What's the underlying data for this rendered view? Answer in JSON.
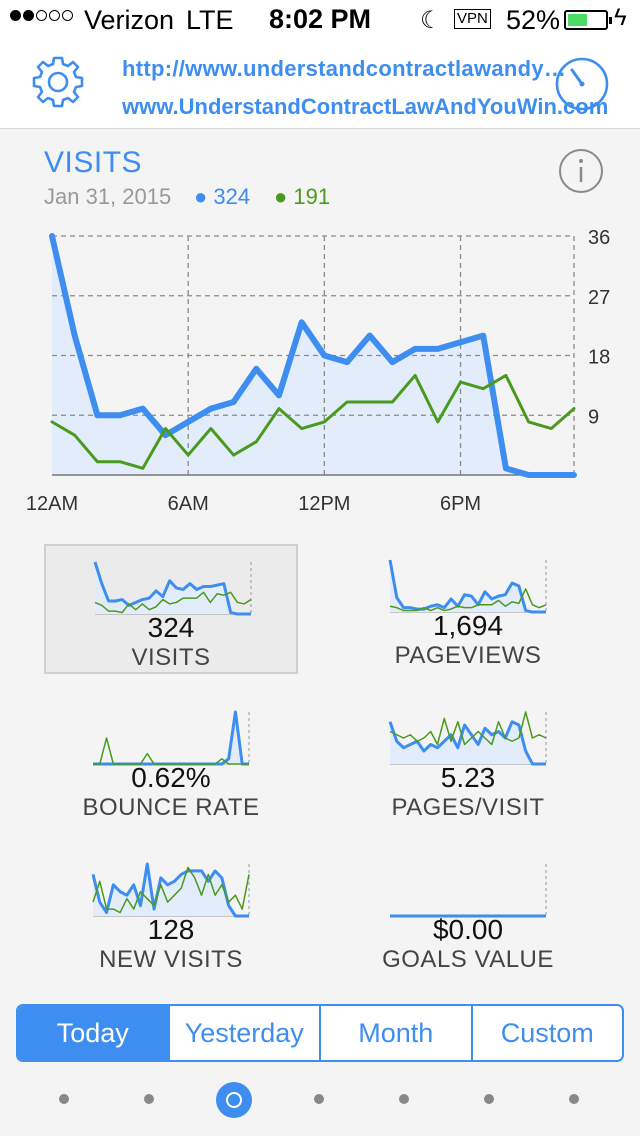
{
  "status_bar": {
    "carrier": "Verizon",
    "network": "LTE",
    "time": "8:02 PM",
    "vpn": "VPN",
    "battery": "52%",
    "battery_level": 0.52
  },
  "header": {
    "url_line1": "http://www.understandcontractlawandy…",
    "url_line2": "www.UnderstandContractLawAndYouWin.com"
  },
  "visits_panel": {
    "title": "VISITS",
    "date": "Jan 31, 2015",
    "blue_total": "● 324",
    "green_total": "● 191"
  },
  "chart_data": {
    "type": "area",
    "title": "VISITS",
    "x_tick_labels": [
      "12AM",
      "6AM",
      "12PM",
      "6PM"
    ],
    "y_tick_labels": [
      "36",
      "27",
      "18",
      "9"
    ],
    "ylim": [
      0,
      36
    ],
    "grid": true,
    "series": [
      {
        "name": "",
        "color": "#3d8ef0",
        "values": [
          36,
          21,
          9,
          9,
          10,
          6,
          8,
          10,
          11,
          16,
          12,
          23,
          18,
          17,
          21,
          17,
          19,
          19,
          20,
          21,
          1,
          0,
          0,
          0
        ]
      },
      {
        "name": "",
        "color": "#4a9a1e",
        "values": [
          8,
          6,
          2,
          2,
          1,
          7,
          3,
          7,
          3,
          5,
          10,
          7,
          8,
          11,
          11,
          11,
          15,
          8,
          14,
          13,
          15,
          8,
          7,
          10
        ]
      }
    ]
  },
  "tiles": [
    {
      "value": "324",
      "label": "VISITS"
    },
    {
      "value": "1,694",
      "label": "PAGEVIEWS"
    },
    {
      "value": "0.62%",
      "label": "BOUNCE RATE"
    },
    {
      "value": "5.23",
      "label": "PAGES/VISIT"
    },
    {
      "value": "128",
      "label": "NEW VISITS"
    },
    {
      "value": "$0.00",
      "label": "GOALS VALUE"
    }
  ],
  "spark_data": {
    "visits": {
      "blue": [
        36,
        21,
        9,
        9,
        10,
        6,
        8,
        10,
        11,
        16,
        12,
        23,
        18,
        17,
        21,
        17,
        19,
        19,
        20,
        21,
        1,
        0,
        0,
        0
      ],
      "green": [
        8,
        6,
        2,
        2,
        1,
        7,
        3,
        7,
        3,
        5,
        10,
        7,
        8,
        11,
        11,
        11,
        15,
        8,
        14,
        13,
        15,
        8,
        7,
        10
      ]
    },
    "pageviews": {
      "blue": [
        36,
        10,
        3,
        3,
        2,
        2,
        4,
        5,
        3,
        9,
        4,
        12,
        11,
        5,
        14,
        9,
        11,
        12,
        20,
        18,
        1,
        0,
        0,
        0
      ],
      "green": [
        4,
        3,
        1,
        1,
        1,
        3,
        1,
        3,
        1,
        2,
        4,
        3,
        3,
        5,
        5,
        5,
        8,
        4,
        7,
        6,
        16,
        5,
        3,
        5
      ]
    },
    "bounce_rate": {
      "blue": [
        0,
        0,
        0,
        0,
        0,
        0,
        0,
        0,
        0,
        0,
        0,
        0,
        0,
        0,
        0,
        0,
        0,
        0,
        0,
        0,
        2,
        20,
        0,
        0
      ],
      "green": [
        0,
        0,
        10,
        0,
        0,
        0,
        0,
        0,
        4,
        0,
        0,
        0,
        0,
        0,
        0,
        0,
        0,
        0,
        0,
        2,
        0,
        0,
        0,
        0
      ]
    },
    "pages_visit": {
      "blue": [
        13,
        7,
        5,
        6,
        7,
        4,
        6,
        5,
        7,
        9,
        5,
        12,
        9,
        6,
        11,
        9,
        10,
        8,
        13,
        12,
        4,
        0,
        0,
        0
      ],
      "green": [
        10,
        9,
        8,
        9,
        7,
        8,
        10,
        6,
        14,
        7,
        13,
        6,
        8,
        10,
        8,
        6,
        13,
        8,
        7,
        8,
        16,
        8,
        9,
        8
      ]
    },
    "new_visits": {
      "blue": [
        12,
        4,
        1,
        9,
        7,
        6,
        9,
        3,
        15,
        2,
        11,
        9,
        10,
        12,
        13,
        13,
        13,
        10,
        13,
        11,
        3,
        0,
        0,
        0
      ],
      "green": [
        4,
        10,
        2,
        2,
        1,
        5,
        2,
        7,
        5,
        3,
        9,
        4,
        6,
        8,
        14,
        11,
        6,
        12,
        6,
        9,
        4,
        6,
        2,
        12
      ]
    },
    "goals_value": {
      "blue": [
        0,
        0,
        0,
        0,
        0,
        0,
        0,
        0,
        0,
        0,
        0,
        0,
        0,
        0,
        0,
        0,
        0,
        0,
        0,
        0,
        0,
        0,
        0,
        0
      ],
      "green": []
    }
  },
  "segments": [
    "Today",
    "Yesterday",
    "Month",
    "Custom"
  ],
  "active_segment": 0,
  "pager": {
    "count": 7,
    "active": 2
  },
  "colors": {
    "accent": "#3d8ef0",
    "green": "#4a9a1e",
    "fill": "#e3ecfb"
  }
}
